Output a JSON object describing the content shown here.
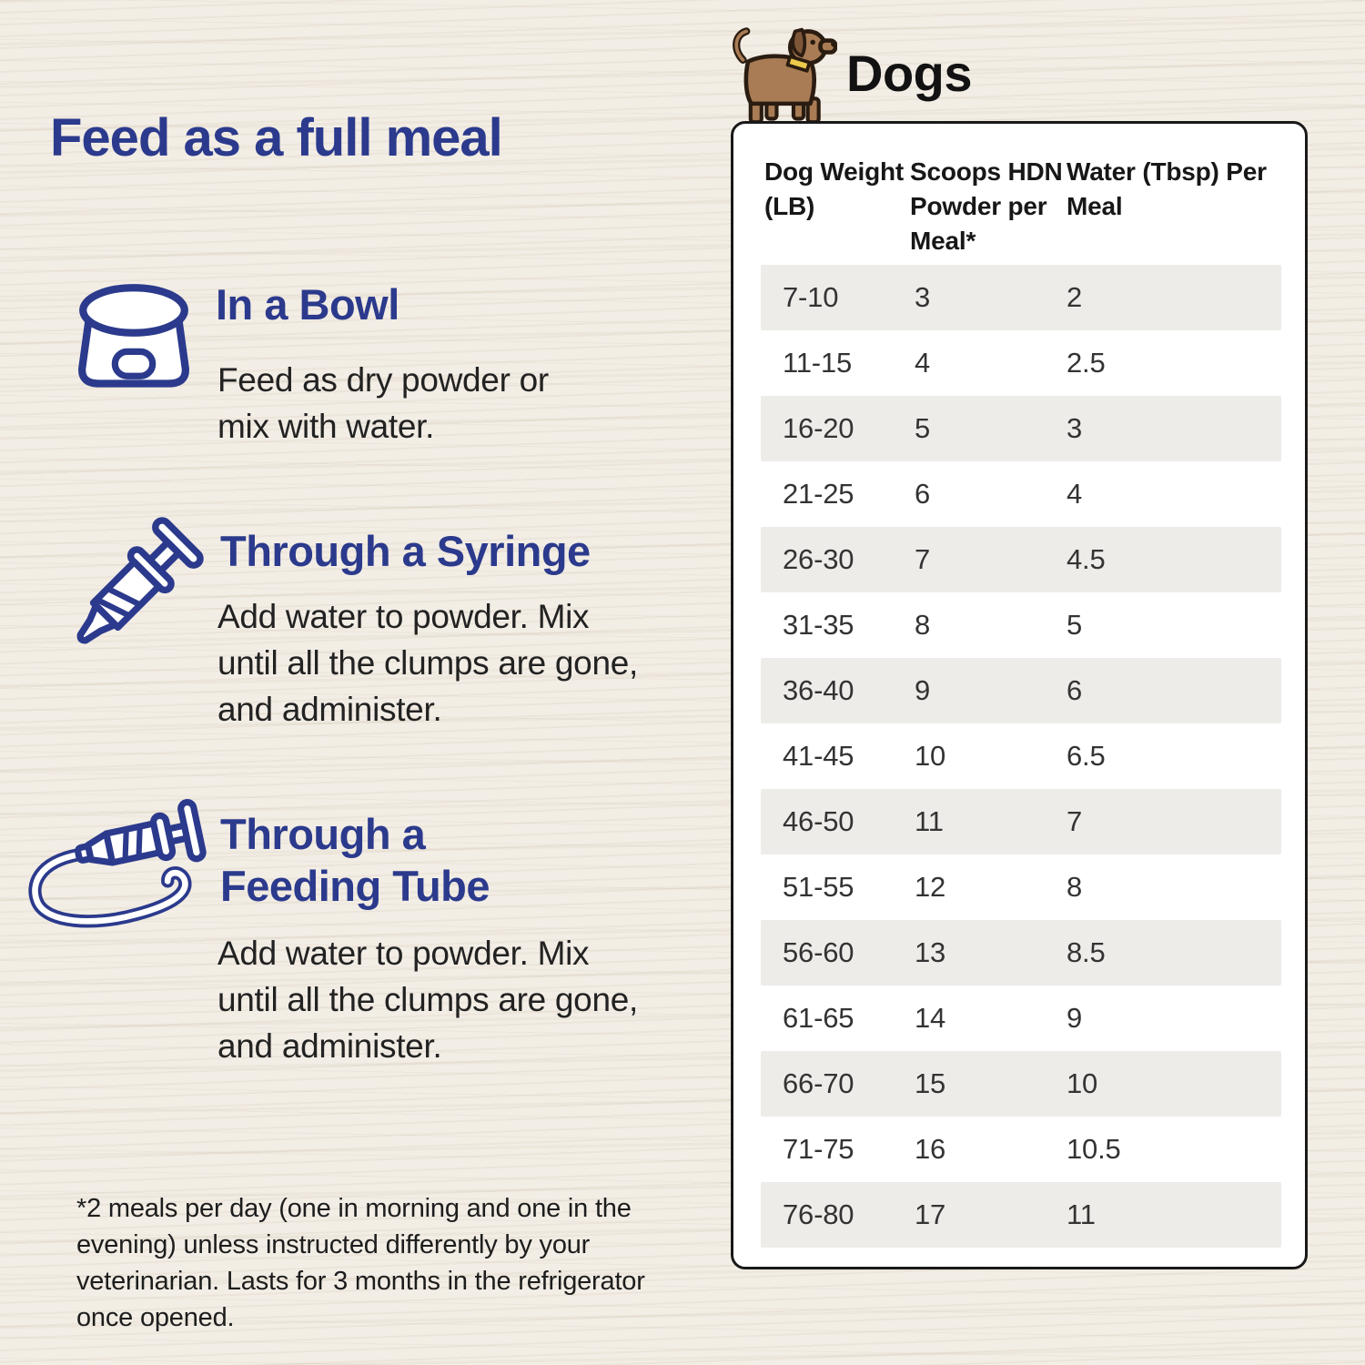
{
  "colors": {
    "bg": "#f2ede5",
    "navy": "#2b3a8c",
    "ink": "#1d1d1d",
    "body-text": "#222222",
    "card-border": "#191919",
    "row-stripe": "#eeece9",
    "dog-brown": "#a97c55",
    "dog-outline": "#2a1c10",
    "dog-ear": "#7d5638",
    "dog-collar": "#ecc94b"
  },
  "left": {
    "title": "Feed as a full meal",
    "sections": [
      {
        "icon": "dog-bowl-icon",
        "heading": "In a Bowl",
        "body": "Feed as dry powder or mix with water."
      },
      {
        "icon": "syringe-icon",
        "heading": "Through a Syringe",
        "body": "Add water to powder. Mix until all the clumps are gone, and administer."
      },
      {
        "icon": "feeding-tube-icon",
        "heading": "Through a Feeding Tube",
        "body": "Add water to powder. Mix until all the clumps are gone, and administer."
      }
    ],
    "footnote": "*2 meals per day (one in morning and one in the evening) unless instructed differently by your veterinarian. Lasts for 3 months in the refrigerator once opened."
  },
  "right": {
    "section_title": "Dogs",
    "table": {
      "headers": [
        "Dog Weight (LB)",
        "Scoops HDN Powder per Meal*",
        "Water (Tbsp) Per Meal"
      ],
      "rows": [
        [
          "7-10",
          "3",
          "2"
        ],
        [
          "11-15",
          "4",
          "2.5"
        ],
        [
          "16-20",
          "5",
          "3"
        ],
        [
          "21-25",
          "6",
          "4"
        ],
        [
          "26-30",
          "7",
          "4.5"
        ],
        [
          "31-35",
          "8",
          "5"
        ],
        [
          "36-40",
          "9",
          "6"
        ],
        [
          "41-45",
          "10",
          "6.5"
        ],
        [
          "46-50",
          "11",
          "7"
        ],
        [
          "51-55",
          "12",
          "8"
        ],
        [
          "56-60",
          "13",
          "8.5"
        ],
        [
          "61-65",
          "14",
          "9"
        ],
        [
          "66-70",
          "15",
          "10"
        ],
        [
          "71-75",
          "16",
          "10.5"
        ],
        [
          "76-80",
          "17",
          "11"
        ]
      ]
    }
  }
}
